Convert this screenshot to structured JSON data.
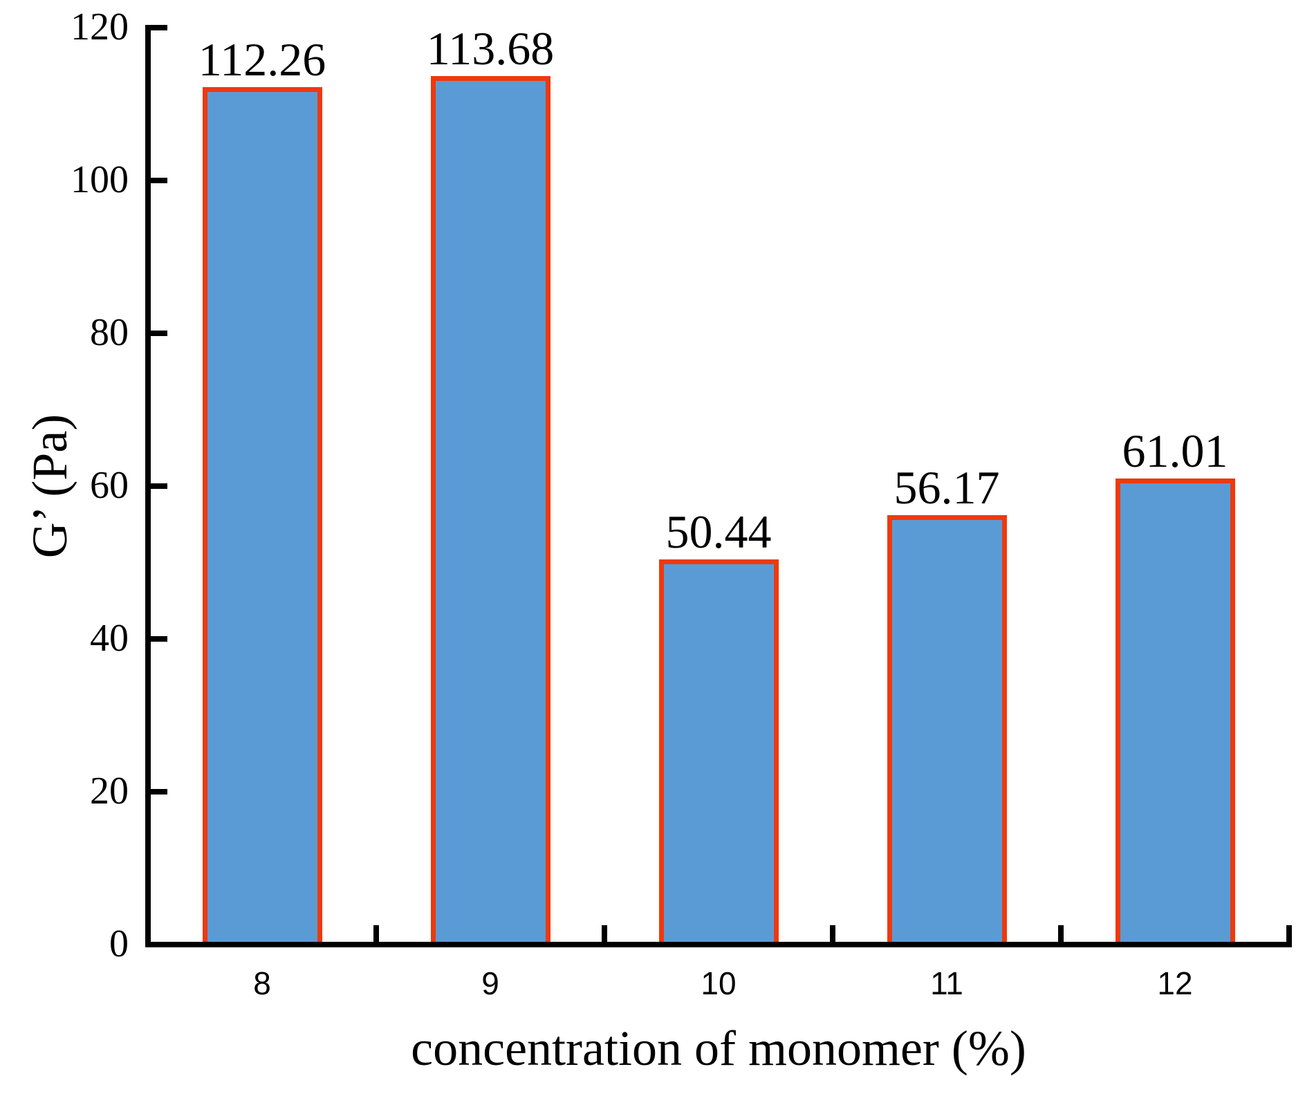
{
  "chart_data": {
    "type": "bar",
    "categories": [
      "8",
      "9",
      "10",
      "11",
      "12"
    ],
    "values": [
      112.26,
      113.68,
      50.44,
      56.17,
      61.01
    ],
    "bar_value_labels": [
      "112.26",
      "113.68",
      "50.44",
      "56.17",
      "61.01"
    ],
    "title": "",
    "xlabel": "concentration of monomer (%)",
    "ylabel": "G’ (Pa)",
    "ylim": [
      0,
      120
    ],
    "yticks": [
      0,
      20,
      40,
      60,
      80,
      100,
      120
    ],
    "xtick_positions": "between-categories",
    "grid": false,
    "legend": null,
    "colors": {
      "bar_fill": "#5B9BD5",
      "bar_border": "#EE390D",
      "axis": "#000000",
      "text": "#000000",
      "background": "#FFFFFF"
    }
  }
}
